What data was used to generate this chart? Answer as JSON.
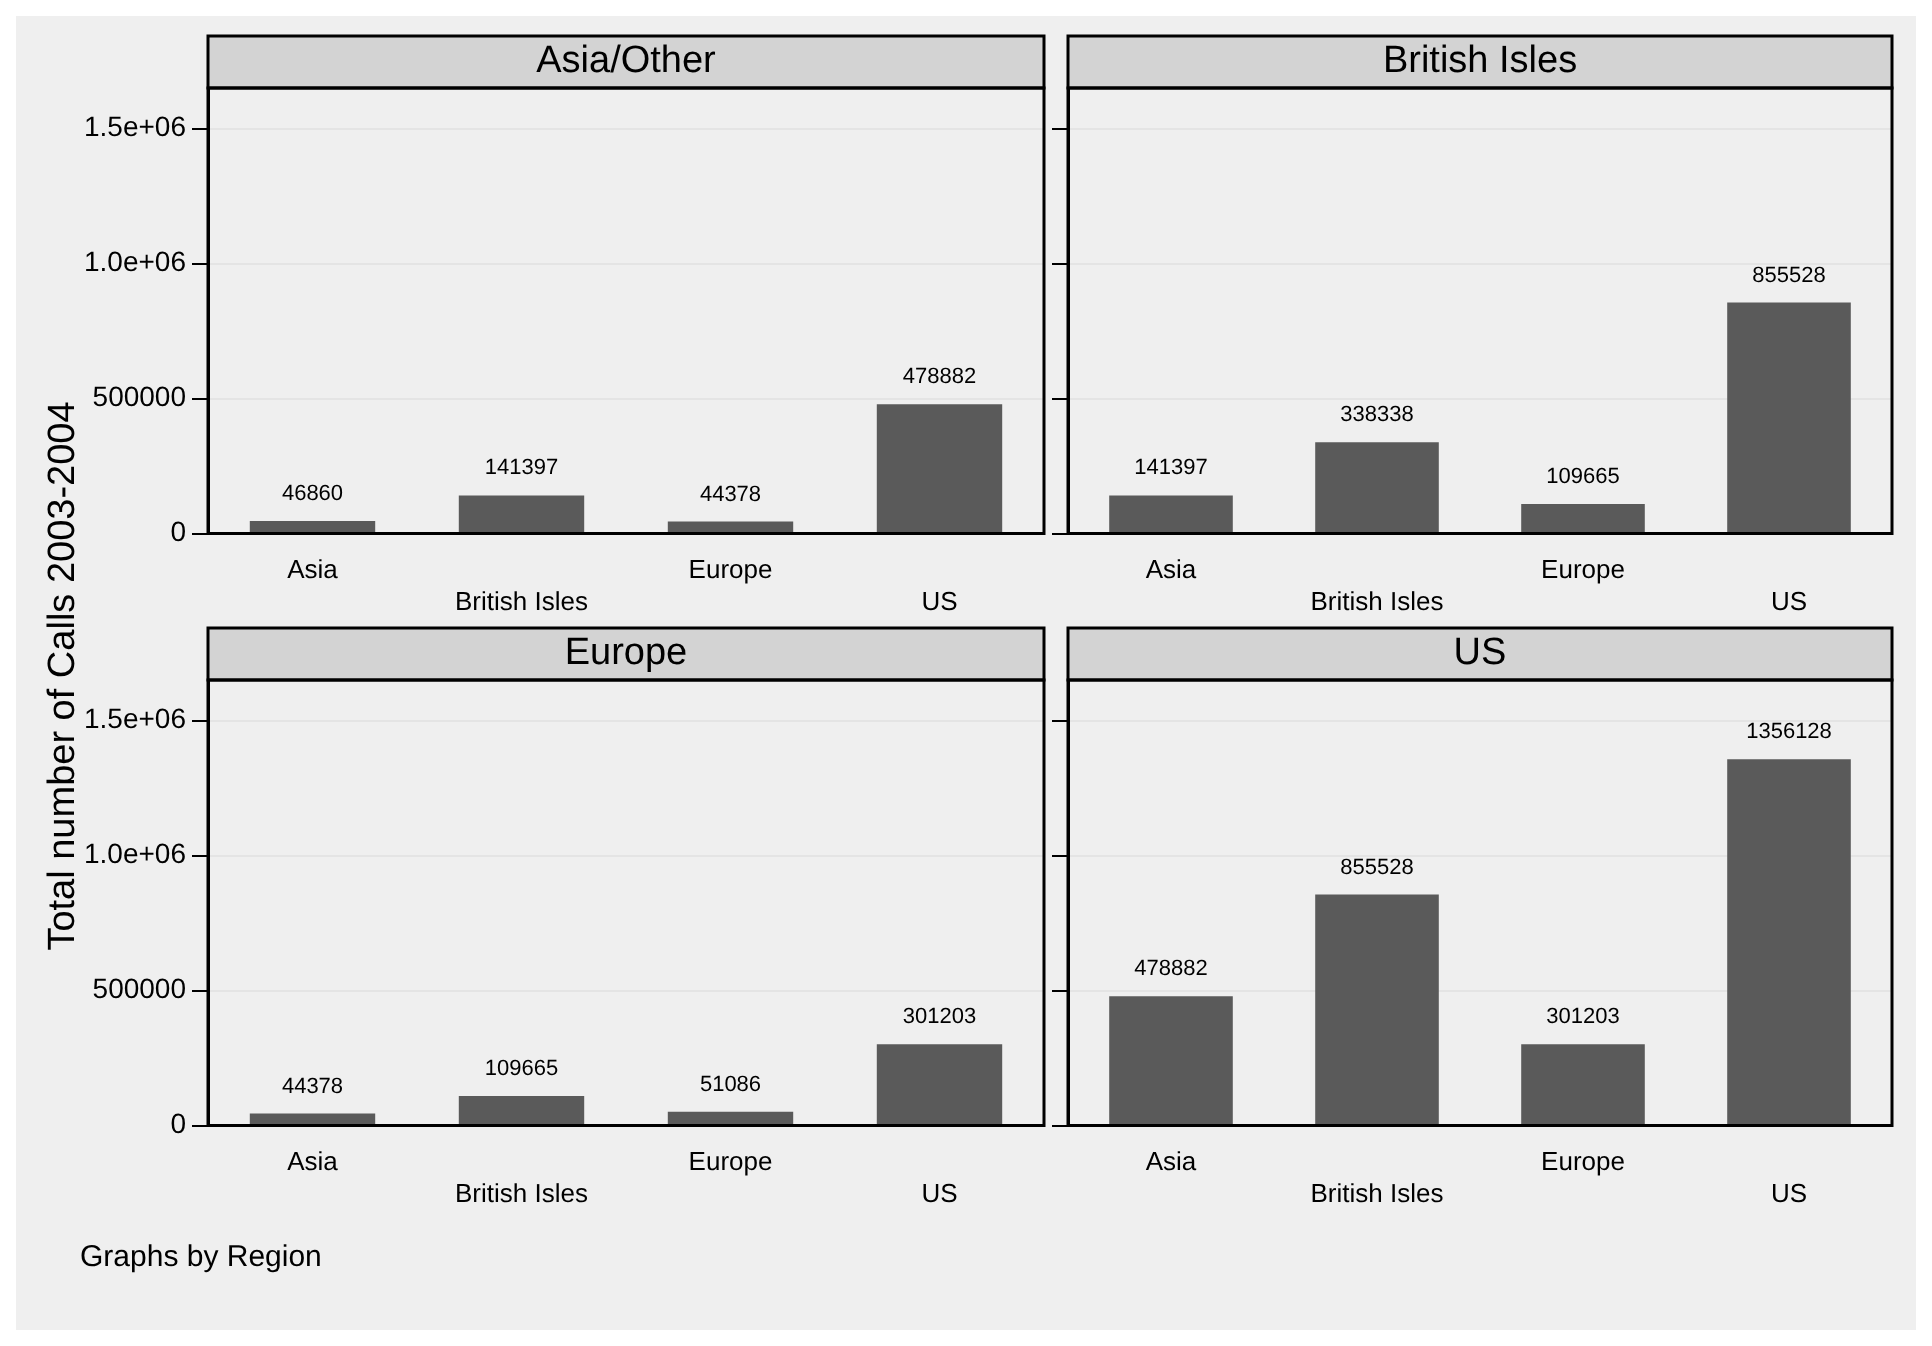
{
  "chart_data": [
    {
      "type": "bar",
      "title": "Asia/Other",
      "ylabel": "Total number of Calls 2003-2004",
      "categories": [
        "Asia",
        "British Isles",
        "Europe",
        "US"
      ],
      "values": [
        46860,
        141397,
        44378,
        478882
      ],
      "color": "#5a5a5a",
      "data_labels": true,
      "ylim": [
        0,
        1650000
      ],
      "yticks": [
        {
          "value": 0,
          "label": "0"
        },
        {
          "value": 500000,
          "label": "500000"
        },
        {
          "value": 1000000,
          "label": "1.0e+06"
        },
        {
          "value": 1500000,
          "label": "1.5e+06"
        }
      ],
      "grid": "y"
    },
    {
      "type": "bar",
      "title": "British Isles",
      "categories": [
        "Asia",
        "British Isles",
        "Europe",
        "US"
      ],
      "values": [
        141397,
        338338,
        109665,
        855528
      ],
      "color": "#5a5a5a",
      "data_labels": true,
      "ylim": [
        0,
        1650000
      ],
      "yticks": [
        {
          "value": 0,
          "label": null
        },
        {
          "value": 500000,
          "label": null
        },
        {
          "value": 1000000,
          "label": null
        },
        {
          "value": 1500000,
          "label": null
        }
      ],
      "grid": "y",
      "tick_labels": "x"
    },
    {
      "type": "bar",
      "title": "Europe",
      "categories": [
        "Asia",
        "British Isles",
        "Europe",
        "US"
      ],
      "values": [
        44378,
        109665,
        51086,
        301203
      ],
      "color": "#5a5a5a",
      "data_labels": true,
      "ylim": [
        0,
        1650000
      ],
      "yticks": [
        {
          "value": 0,
          "label": "0"
        },
        {
          "value": 500000,
          "label": "500000"
        },
        {
          "value": 1000000,
          "label": "1.0e+06"
        },
        {
          "value": 1500000,
          "label": "1.5e+06"
        }
      ],
      "grid": "y",
      "annotations": [
        "Graphs by Region"
      ]
    },
    {
      "type": "bar",
      "title": "US",
      "categories": [
        "Asia",
        "British Isles",
        "Europe",
        "US"
      ],
      "values": [
        478882,
        855528,
        301203,
        1356128
      ],
      "color": "#5a5a5a",
      "data_labels": true,
      "ylim": [
        0,
        1650000
      ],
      "yticks": [
        {
          "value": 0,
          "label": null
        },
        {
          "value": 500000,
          "label": null
        },
        {
          "value": 1000000,
          "label": null
        },
        {
          "value": 1500000,
          "label": null
        }
      ],
      "grid": "y",
      "tick_labels": "x"
    }
  ]
}
